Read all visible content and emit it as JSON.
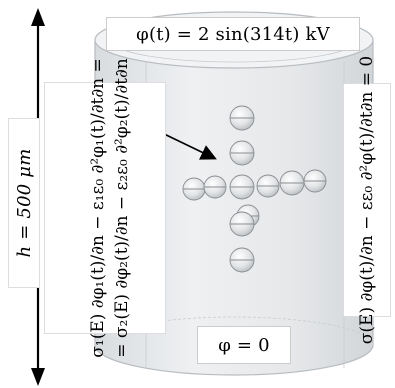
{
  "top_label": "φ(t) = 2 sin(314t) kV",
  "bottom_label": "φ = 0",
  "height_label": "h = 500 μm",
  "left_equation_line1": "σ₁(E) ∂φ₁(t)/∂n − ε₁ε₀ ∂²φ₁(t)/∂t∂n =",
  "left_equation_line2": "= σ₂(E) ∂φ₂(t)/∂n − ε₂ε₀ ∂²φ₂(t)/∂t∂n",
  "right_equation": "σ(E) ∂φ(t)/∂n − εε₀ ∂²φ(t)/∂t∂n = 0",
  "colors": {
    "cylinder_fill": "#e8eaec",
    "cylinder_stroke": "#b8bcc0",
    "sphere_fill": "#dcdee0",
    "sphere_stroke": "#8a8e92",
    "arrow": "#000000"
  }
}
